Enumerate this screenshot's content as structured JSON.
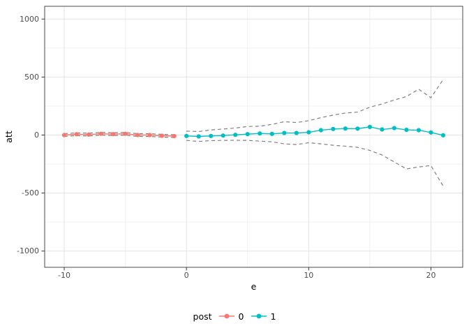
{
  "chart_data": {
    "type": "line",
    "title": "",
    "xlabel": "e",
    "ylabel": "att",
    "xlim": [
      -11.6,
      22.6
    ],
    "ylim": [
      -1140,
      1110
    ],
    "x_ticks": [
      -10,
      0,
      10,
      20
    ],
    "x_minor_ticks": [
      -5,
      5,
      15
    ],
    "y_ticks": [
      -1000,
      -500,
      0,
      500,
      1000
    ],
    "y_minor_ticks": [
      -750,
      -250,
      250,
      750
    ],
    "grid": true,
    "panel_border": true,
    "band_color": "#7f7f7f",
    "band_style": "dashed",
    "legend": {
      "title": "post",
      "position": "bottom",
      "entries": [
        {
          "label": "0",
          "color": "#F8766D"
        },
        {
          "label": "1",
          "color": "#00BFC4"
        }
      ]
    },
    "series": [
      {
        "name": "0",
        "color": "#F8766D",
        "x": [
          -10,
          -9,
          -8,
          -7,
          -6,
          -5,
          -4,
          -3,
          -2,
          -1
        ],
        "y": [
          0,
          7,
          4,
          11,
          8,
          11,
          0,
          0,
          -6,
          -9
        ],
        "ci_upper": [
          12,
          19,
          16,
          23,
          20,
          23,
          12,
          12,
          6,
          3
        ],
        "ci_lower": [
          -12,
          -5,
          -8,
          -1,
          -4,
          -1,
          -12,
          -12,
          -18,
          -21
        ]
      },
      {
        "name": "1",
        "color": "#00BFC4",
        "x": [
          0,
          1,
          2,
          3,
          4,
          5,
          6,
          7,
          8,
          9,
          10,
          11,
          12,
          13,
          14,
          15,
          16,
          17,
          18,
          19,
          20,
          21
        ],
        "y": [
          -8,
          -12,
          -8,
          -4,
          2,
          8,
          14,
          10,
          18,
          18,
          24,
          42,
          52,
          56,
          55,
          70,
          48,
          60,
          45,
          42,
          22,
          -2
        ],
        "ci_upper": [
          34,
          30,
          44,
          52,
          60,
          74,
          76,
          92,
          115,
          108,
          124,
          150,
          172,
          190,
          198,
          240,
          268,
          302,
          332,
          395,
          322,
          478
        ],
        "ci_lower": [
          -46,
          -55,
          -48,
          -46,
          -45,
          -46,
          -52,
          -58,
          -76,
          -82,
          -66,
          -76,
          -88,
          -96,
          -106,
          -132,
          -172,
          -232,
          -292,
          -275,
          -263,
          -440
        ]
      }
    ]
  }
}
